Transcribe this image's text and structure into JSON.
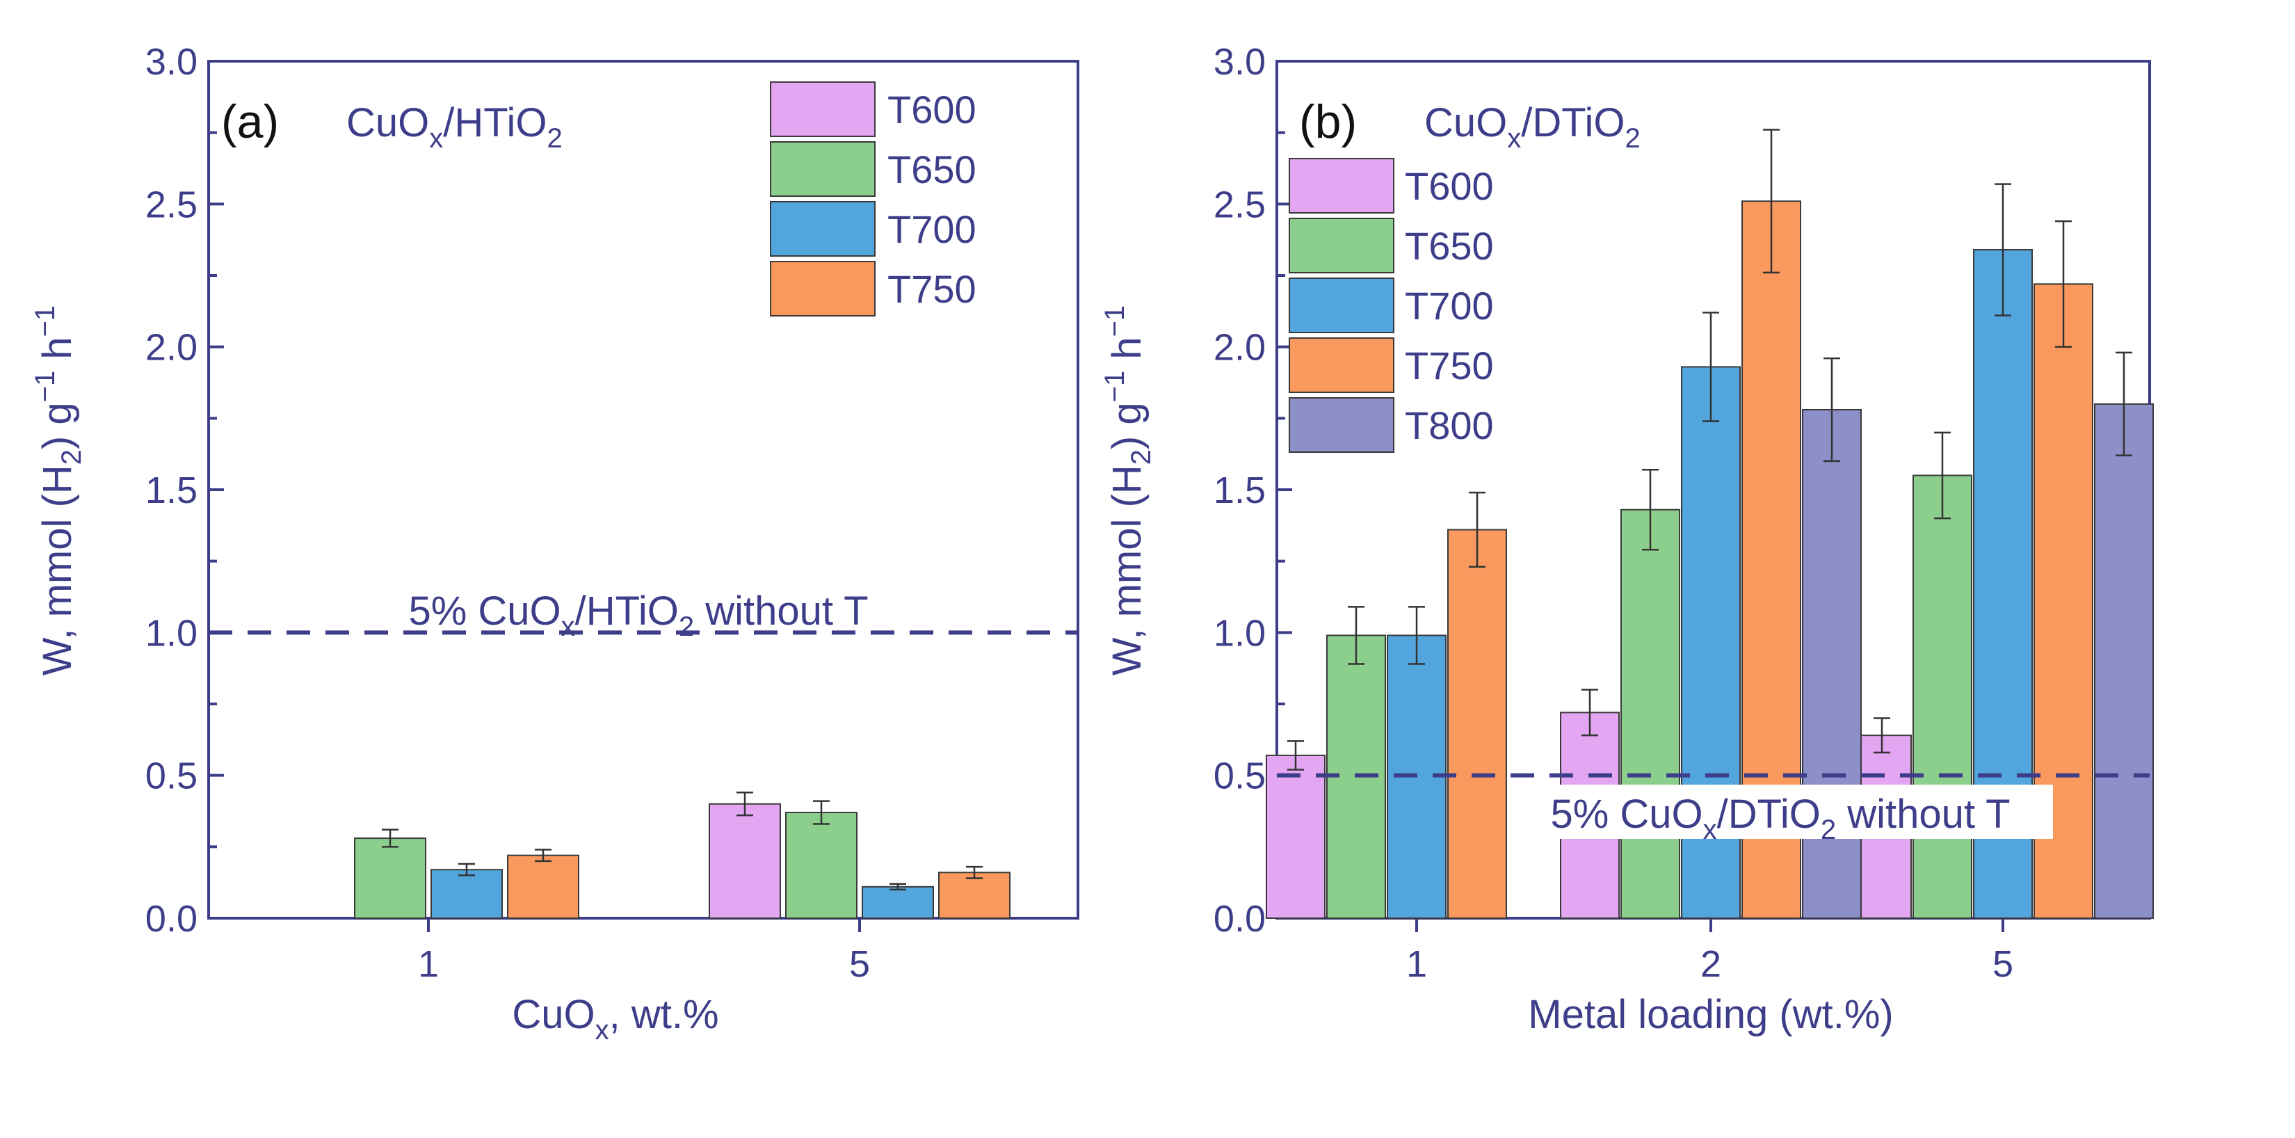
{
  "chart_data": [
    {
      "type": "bar",
      "panel_label": "(a)",
      "title_main": "CuO",
      "title_sub": "x",
      "title_tail": "/HTiO",
      "title_sub2": "2",
      "xlabel_main": "CuO",
      "xlabel_sub": "x",
      "xlabel_tail": ", wt.%",
      "ylabel": "W, mmol (H2) g−1 h−1",
      "ylabel_parts": {
        "a": "W, mmol (H",
        "b": "2",
        "c": ") g",
        "d": "−1",
        "e": " h",
        "f": "−1"
      },
      "ylim": [
        0,
        3.0
      ],
      "yticks": [
        "0.0",
        "0.5",
        "1.0",
        "1.5",
        "2.0",
        "2.5",
        "3.0"
      ],
      "categories": [
        "1",
        "5"
      ],
      "series": [
        {
          "name": "T600",
          "color": "#e3a6f2",
          "values": [
            null,
            0.4
          ],
          "errors": [
            null,
            0.04
          ]
        },
        {
          "name": "T650",
          "color": "#8ccf8c",
          "values": [
            0.28,
            0.37
          ],
          "errors": [
            0.03,
            0.04
          ]
        },
        {
          "name": "T700",
          "color": "#52a6dd",
          "values": [
            0.17,
            0.11
          ],
          "errors": [
            0.02,
            0.01
          ]
        },
        {
          "name": "T750",
          "color": "#f9995e",
          "values": [
            0.22,
            0.16
          ],
          "errors": [
            0.02,
            0.02
          ]
        }
      ],
      "reference_line": {
        "value": 1.0,
        "label_main": "5% CuO",
        "label_sub": "x",
        "label_mid": "/HTiO",
        "label_sub2": "2",
        "label_tail": " without T"
      },
      "legend_position": "top-right"
    },
    {
      "type": "bar",
      "panel_label": "(b)",
      "title_main": "CuO",
      "title_sub": "x",
      "title_tail": "/DTiO",
      "title_sub2": "2",
      "xlabel": "Metal loading (wt.%)",
      "ylabel": "W, mmol (H2) g−1 h−1",
      "ylabel_parts": {
        "a": "W, mmol (H",
        "b": "2",
        "c": ") g",
        "d": "−1",
        "e": " h",
        "f": "−1"
      },
      "ylim": [
        0,
        3.0
      ],
      "yticks": [
        "0.0",
        "0.5",
        "1.0",
        "1.5",
        "2.0",
        "2.5",
        "3.0"
      ],
      "categories": [
        "1",
        "2",
        "5"
      ],
      "series": [
        {
          "name": "T600",
          "color": "#e3a6f2",
          "values": [
            0.57,
            0.72,
            0.64
          ],
          "errors": [
            0.05,
            0.08,
            0.06
          ]
        },
        {
          "name": "T650",
          "color": "#8ccf8c",
          "values": [
            0.99,
            1.43,
            1.55
          ],
          "errors": [
            0.1,
            0.14,
            0.15
          ]
        },
        {
          "name": "T700",
          "color": "#52a6dd",
          "values": [
            0.99,
            1.93,
            2.34
          ],
          "errors": [
            0.1,
            0.19,
            0.23
          ]
        },
        {
          "name": "T750",
          "color": "#f9995e",
          "values": [
            1.36,
            2.51,
            2.22
          ],
          "errors": [
            0.13,
            0.25,
            0.22
          ]
        },
        {
          "name": "T800",
          "color": "#8c8fc8",
          "values": [
            null,
            1.78,
            1.8
          ],
          "errors": [
            null,
            0.18,
            0.18
          ]
        }
      ],
      "reference_line": {
        "value": 0.5,
        "label_main": "5% CuO",
        "label_sub": "x",
        "label_mid": "/DTiO",
        "label_sub2": "2",
        "label_tail": " without T"
      },
      "legend_position": "top-left"
    }
  ]
}
